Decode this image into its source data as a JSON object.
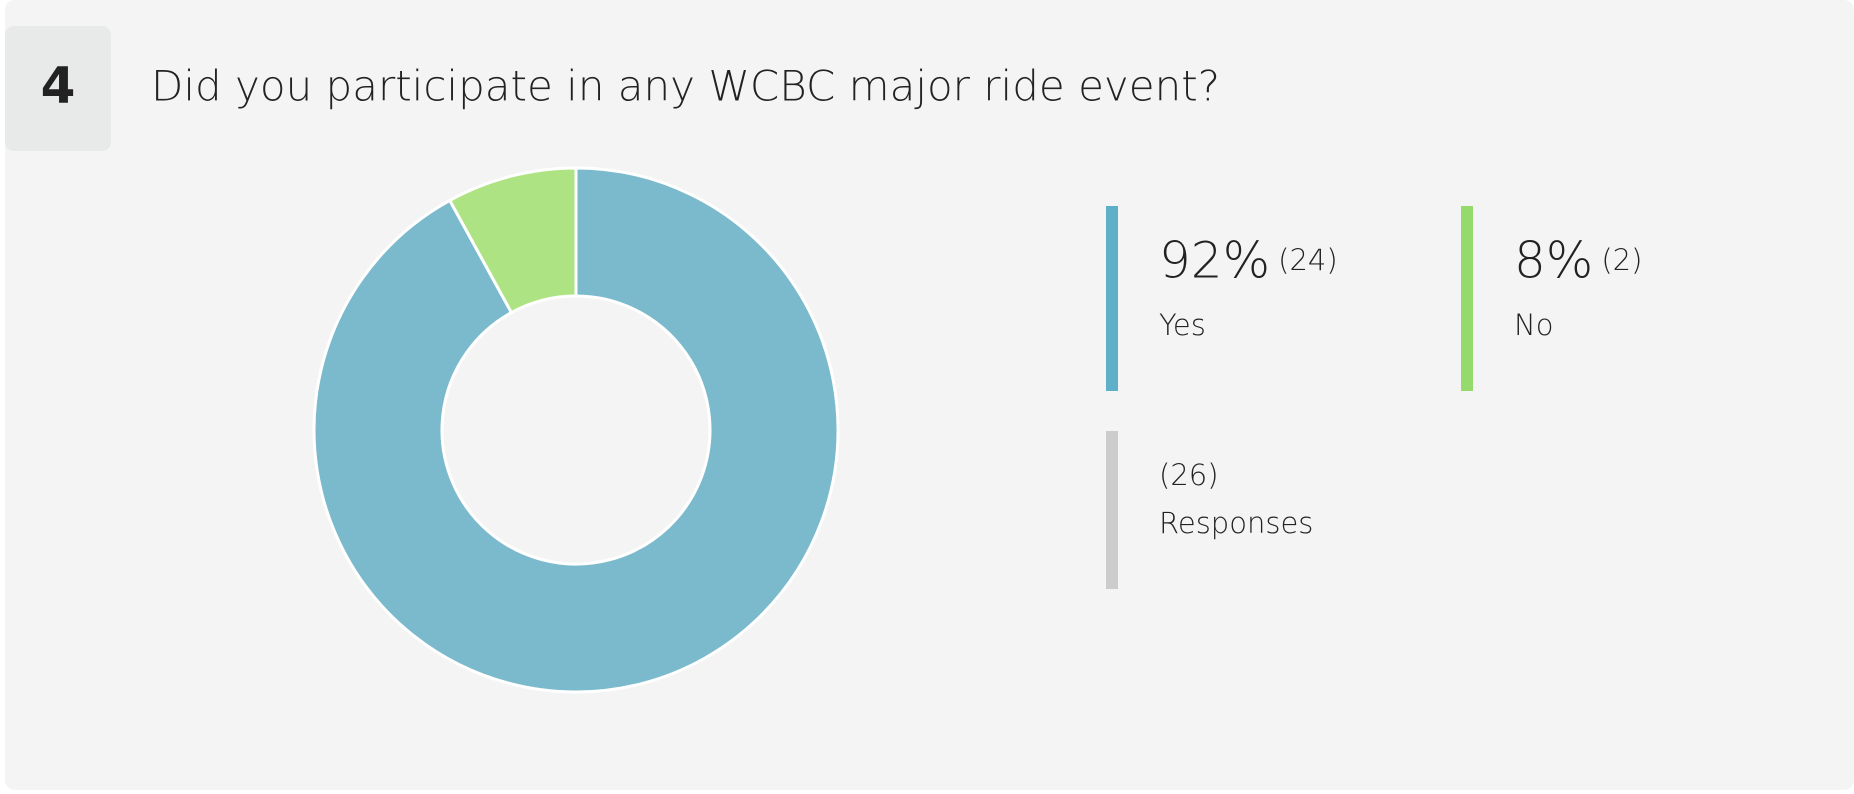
{
  "question": {
    "number": "4",
    "title": "Did you participate in any WCBC major ride event?"
  },
  "chart_data": {
    "type": "donut",
    "categories": [
      "Yes",
      "No"
    ],
    "values": [
      92,
      8
    ],
    "value_labels": [
      "92%",
      "8%"
    ],
    "counts": [
      "(24)",
      "(2)"
    ],
    "colors": [
      "#7bbacc",
      "#ade383"
    ],
    "legend_colors": [
      "#5eafc8",
      "#94da6c"
    ],
    "total": {
      "count": "(26)",
      "label": "Responses"
    }
  }
}
